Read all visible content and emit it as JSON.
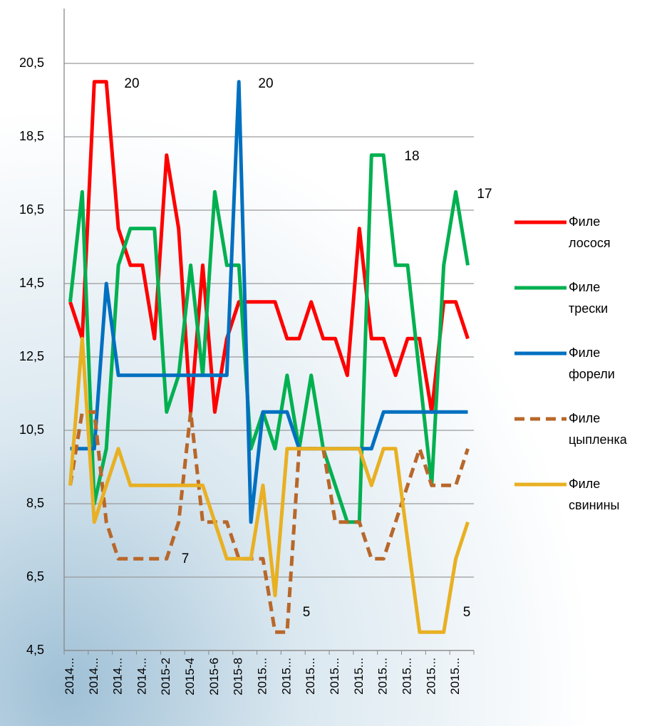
{
  "chart_data": {
    "type": "line",
    "categories": [
      "2014...",
      null,
      "2014...",
      null,
      "2014...",
      null,
      "2014...",
      null,
      "2015-2",
      null,
      "2015-4",
      null,
      "2015-6",
      null,
      "2015-8",
      null,
      "2015...",
      null,
      "2015...",
      null,
      "2015...",
      null,
      "2015...",
      null,
      "2015...",
      null,
      "2015...",
      null,
      "2015...",
      null,
      "2015...",
      null,
      "2015...",
      null
    ],
    "series": [
      {
        "name": "Филе лосося",
        "color": "#ff0000",
        "values": [
          14,
          13,
          20,
          20,
          16,
          15,
          15,
          13,
          18,
          16,
          11,
          15,
          11,
          13,
          14,
          14,
          14,
          14,
          13,
          13,
          14,
          13,
          13,
          12,
          16,
          13,
          13,
          12,
          13,
          13,
          11,
          14,
          14,
          13
        ]
      },
      {
        "name": "Филе трески",
        "color": "#00b050",
        "values": [
          14,
          17,
          8.5,
          10,
          15,
          16,
          16,
          16,
          11,
          12,
          15,
          12,
          17,
          15,
          15,
          10,
          11,
          10,
          12,
          10,
          12,
          10,
          9,
          8,
          8,
          18,
          18,
          15,
          15,
          12,
          9,
          15,
          17,
          15
        ]
      },
      {
        "name": "Филе форели",
        "color": "#0070c0",
        "values": [
          10,
          10,
          10,
          14.5,
          12,
          12,
          12,
          12,
          12,
          12,
          12,
          12,
          12,
          12,
          20,
          8,
          11,
          11,
          11,
          10,
          10,
          10,
          10,
          10,
          10,
          10,
          11,
          11,
          11,
          11,
          11,
          11,
          11,
          11
        ]
      },
      {
        "name": "Филе цыпленка",
        "color": "#b8672a",
        "dashed": true,
        "values": [
          9,
          11,
          11,
          8,
          7,
          7,
          7,
          7,
          7,
          8,
          11,
          8,
          8,
          8,
          7,
          7,
          7,
          5,
          5,
          10,
          10,
          10,
          8,
          8,
          8,
          7,
          7,
          8,
          9,
          10,
          9,
          9,
          9,
          10
        ]
      },
      {
        "name": "Филе свинины",
        "color": "#e8b022",
        "values": [
          9,
          13,
          8,
          9,
          10,
          9,
          9,
          9,
          9,
          9,
          9,
          9,
          8,
          7,
          7,
          7,
          9,
          6,
          10,
          10,
          10,
          10,
          10,
          10,
          10,
          9,
          10,
          10,
          7.5,
          5,
          5,
          5,
          7,
          8
        ]
      }
    ],
    "annotations": [
      "20",
      "20",
      "7",
      "18",
      "17",
      "5",
      "5"
    ],
    "ylim": [
      4.5,
      20.5
    ],
    "yticks": [
      {
        "value": 4.5,
        "label": "4,5"
      },
      {
        "value": 6.5,
        "label": "6,5"
      },
      {
        "value": 8.5,
        "label": "8,5"
      },
      {
        "value": 10.5,
        "label": "10,5"
      },
      {
        "value": 12.5,
        "label": "12,5"
      },
      {
        "value": 14.5,
        "label": "14,5"
      },
      {
        "value": 16.5,
        "label": "16,5"
      },
      {
        "value": 18.5,
        "label": "18,5"
      },
      {
        "value": 20.5,
        "label": "20,5"
      }
    ],
    "grid": true,
    "legend": "right"
  }
}
